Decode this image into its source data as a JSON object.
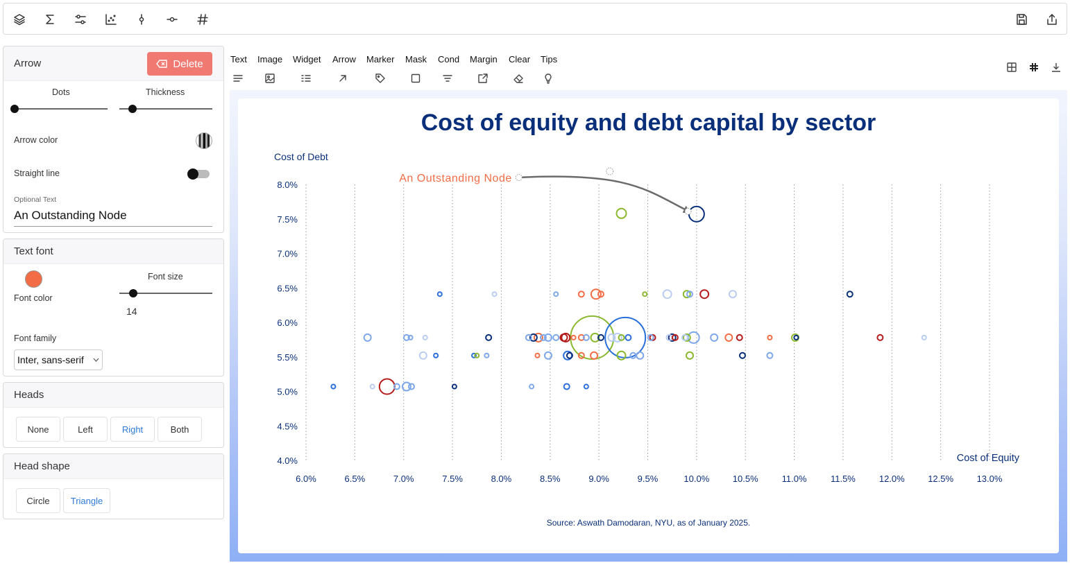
{
  "toolbar": {
    "icons": [
      "layers-icon",
      "sigma-icon",
      "sliders-icon",
      "scatter-icon",
      "marker-vertical-icon",
      "marker-horizontal-icon",
      "hash-icon"
    ],
    "right_icons": [
      "save-icon",
      "share-icon"
    ]
  },
  "arrow_panel": {
    "title": "Arrow",
    "delete_label": "Delete",
    "dots_label": "Dots",
    "thickness_label": "Thickness",
    "dots_value": 0,
    "thickness_value": 0.14,
    "arrow_color_label": "Arrow color",
    "straight_line_label": "Straight line",
    "straight_line_on": false,
    "optional_text_label": "Optional Text",
    "optional_text_value": "An Outstanding Node"
  },
  "text_font_panel": {
    "title": "Text font",
    "font_color_label": "Font color",
    "font_color": "#f26d45",
    "font_size_label": "Font size",
    "font_size_value": "14",
    "font_family_label": "Font family",
    "font_family_value": "Inter, sans-serif"
  },
  "heads_panel": {
    "title": "Heads",
    "options": [
      "None",
      "Left",
      "Right",
      "Both"
    ],
    "selected": "Right"
  },
  "head_shape_panel": {
    "title": "Head shape",
    "options": [
      "Circle",
      "Triangle"
    ],
    "selected": "Triangle"
  },
  "menu": {
    "items": [
      "Text",
      "Image",
      "Widget",
      "Arrow",
      "Marker",
      "Mask",
      "Cond",
      "Margin",
      "Clear",
      "Tips"
    ],
    "icons": [
      "text-lines-icon",
      "image-icon",
      "widget-icon",
      "arrow-icon",
      "tag-icon",
      "square-mask-icon",
      "filter-icon",
      "margin-icon",
      "eraser-icon",
      "bulb-icon"
    ]
  },
  "view_icons": [
    "grid-icon",
    "snap-icon",
    "download-icon"
  ],
  "chart_data": {
    "type": "scatter",
    "title": "Cost of equity and debt capital by sector",
    "xlabel": "Cost of Equity",
    "ylabel": "Cost of Debt",
    "source": "Source: Aswath Damodaran, NYU, as of January 2025.",
    "xlim": [
      6.0,
      13.0
    ],
    "ylim": [
      4.0,
      8.0
    ],
    "x_ticks": [
      "6.0%",
      "6.5%",
      "7.0%",
      "7.5%",
      "8.0%",
      "8.5%",
      "9.0%",
      "9.5%",
      "10.0%",
      "10.5%",
      "11.0%",
      "11.5%",
      "12.0%",
      "12.5%",
      "13.0%"
    ],
    "y_ticks": [
      "4.0%",
      "4.5%",
      "5.0%",
      "5.5%",
      "6.0%",
      "6.5%",
      "7.0%",
      "7.5%",
      "8.0%"
    ],
    "grid": "vertical dotted",
    "colors": {
      "navy": "#0a2f7a",
      "blue": "#2a6fdb",
      "lightblue": "#7da7ea",
      "paleblue": "#b9cdf2",
      "red": "#b51c1c",
      "orange": "#f26d45",
      "green": "#8ab82e"
    },
    "annotation": {
      "text": "An Outstanding Node",
      "color": "#f26d45",
      "from": [
        8.18,
        8.1
      ],
      "to": [
        9.92,
        7.61
      ],
      "target": [
        10.0,
        7.57
      ]
    },
    "points": [
      {
        "x": 10.0,
        "y": 7.57,
        "r": 11,
        "c": "navy"
      },
      {
        "x": 9.23,
        "y": 7.58,
        "r": 7,
        "c": "green"
      },
      {
        "x": 7.37,
        "y": 6.41,
        "r": 3,
        "c": "blue"
      },
      {
        "x": 7.93,
        "y": 6.41,
        "r": 3,
        "c": "paleblue"
      },
      {
        "x": 8.56,
        "y": 6.41,
        "r": 3,
        "c": "lightblue"
      },
      {
        "x": 8.82,
        "y": 6.41,
        "r": 4,
        "c": "orange"
      },
      {
        "x": 8.97,
        "y": 6.41,
        "r": 7,
        "c": "orange"
      },
      {
        "x": 9.02,
        "y": 6.41,
        "r": 4,
        "c": "orange"
      },
      {
        "x": 9.47,
        "y": 6.41,
        "r": 3,
        "c": "green"
      },
      {
        "x": 9.7,
        "y": 6.41,
        "r": 6,
        "c": "paleblue"
      },
      {
        "x": 9.9,
        "y": 6.41,
        "r": 5,
        "c": "green"
      },
      {
        "x": 9.93,
        "y": 6.41,
        "r": 4,
        "c": "lightblue"
      },
      {
        "x": 10.08,
        "y": 6.41,
        "r": 6,
        "c": "red"
      },
      {
        "x": 10.37,
        "y": 6.41,
        "r": 5,
        "c": "paleblue"
      },
      {
        "x": 11.57,
        "y": 6.41,
        "r": 4,
        "c": "navy"
      },
      {
        "x": 6.63,
        "y": 5.78,
        "r": 5,
        "c": "lightblue"
      },
      {
        "x": 7.03,
        "y": 5.78,
        "r": 4,
        "c": "lightblue"
      },
      {
        "x": 7.07,
        "y": 5.78,
        "r": 3,
        "c": "lightblue"
      },
      {
        "x": 7.22,
        "y": 5.78,
        "r": 3,
        "c": "paleblue"
      },
      {
        "x": 7.87,
        "y": 5.78,
        "r": 4,
        "c": "navy"
      },
      {
        "x": 8.28,
        "y": 5.78,
        "r": 4,
        "c": "lightblue"
      },
      {
        "x": 8.33,
        "y": 5.78,
        "r": 5,
        "c": "navy"
      },
      {
        "x": 8.38,
        "y": 5.78,
        "r": 6,
        "c": "orange"
      },
      {
        "x": 8.43,
        "y": 5.78,
        "r": 4,
        "c": "lightblue"
      },
      {
        "x": 8.48,
        "y": 5.78,
        "r": 5,
        "c": "lightblue"
      },
      {
        "x": 8.56,
        "y": 5.78,
        "r": 4,
        "c": "lightblue"
      },
      {
        "x": 8.64,
        "y": 5.78,
        "r": 5,
        "c": "red"
      },
      {
        "x": 8.66,
        "y": 5.78,
        "r": 6,
        "c": "red"
      },
      {
        "x": 8.74,
        "y": 5.78,
        "r": 3,
        "c": "orange"
      },
      {
        "x": 8.82,
        "y": 5.78,
        "r": 4,
        "c": "orange"
      },
      {
        "x": 8.87,
        "y": 5.78,
        "r": 4,
        "c": "lightblue"
      },
      {
        "x": 8.93,
        "y": 5.78,
        "r": 31,
        "c": "green"
      },
      {
        "x": 8.96,
        "y": 5.78,
        "r": 6,
        "c": "green"
      },
      {
        "x": 9.02,
        "y": 5.78,
        "r": 4,
        "c": "navy"
      },
      {
        "x": 9.13,
        "y": 5.78,
        "r": 5,
        "c": "paleblue"
      },
      {
        "x": 9.19,
        "y": 5.78,
        "r": 6,
        "c": "paleblue"
      },
      {
        "x": 9.23,
        "y": 5.78,
        "r": 4,
        "c": "green"
      },
      {
        "x": 9.27,
        "y": 5.78,
        "r": 29,
        "c": "blue"
      },
      {
        "x": 9.3,
        "y": 5.78,
        "r": 4,
        "c": "blue"
      },
      {
        "x": 9.55,
        "y": 5.78,
        "r": 4,
        "c": "red"
      },
      {
        "x": 9.53,
        "y": 5.78,
        "r": 4,
        "c": "lightblue"
      },
      {
        "x": 9.72,
        "y": 5.78,
        "r": 4,
        "c": "paleblue"
      },
      {
        "x": 9.75,
        "y": 5.78,
        "r": 5,
        "c": "navy"
      },
      {
        "x": 9.78,
        "y": 5.78,
        "r": 4,
        "c": "red"
      },
      {
        "x": 9.88,
        "y": 5.78,
        "r": 4,
        "c": "paleblue"
      },
      {
        "x": 9.9,
        "y": 5.78,
        "r": 5,
        "c": "green"
      },
      {
        "x": 9.97,
        "y": 5.78,
        "r": 8,
        "c": "lightblue"
      },
      {
        "x": 10.18,
        "y": 5.78,
        "r": 5,
        "c": "lightblue"
      },
      {
        "x": 10.33,
        "y": 5.78,
        "r": 5,
        "c": "orange"
      },
      {
        "x": 10.44,
        "y": 5.78,
        "r": 4,
        "c": "red"
      },
      {
        "x": 10.75,
        "y": 5.78,
        "r": 3,
        "c": "orange"
      },
      {
        "x": 11.01,
        "y": 5.78,
        "r": 5,
        "c": "green"
      },
      {
        "x": 11.02,
        "y": 5.78,
        "r": 3,
        "c": "navy"
      },
      {
        "x": 11.88,
        "y": 5.78,
        "r": 4,
        "c": "red"
      },
      {
        "x": 12.33,
        "y": 5.78,
        "r": 3,
        "c": "paleblue"
      },
      {
        "x": 7.2,
        "y": 5.52,
        "r": 5,
        "c": "paleblue"
      },
      {
        "x": 7.33,
        "y": 5.52,
        "r": 3,
        "c": "blue"
      },
      {
        "x": 7.72,
        "y": 5.52,
        "r": 3,
        "c": "blue"
      },
      {
        "x": 7.75,
        "y": 5.52,
        "r": 3,
        "c": "green"
      },
      {
        "x": 7.85,
        "y": 5.52,
        "r": 3,
        "c": "lightblue"
      },
      {
        "x": 8.37,
        "y": 5.52,
        "r": 3,
        "c": "orange"
      },
      {
        "x": 8.48,
        "y": 5.52,
        "r": 5,
        "c": "lightblue"
      },
      {
        "x": 8.68,
        "y": 5.52,
        "r": 6,
        "c": "blue"
      },
      {
        "x": 8.7,
        "y": 5.52,
        "r": 4,
        "c": "navy"
      },
      {
        "x": 8.82,
        "y": 5.52,
        "r": 4,
        "c": "orange"
      },
      {
        "x": 8.95,
        "y": 5.52,
        "r": 5,
        "c": "orange"
      },
      {
        "x": 9.23,
        "y": 5.52,
        "r": 6,
        "c": "green"
      },
      {
        "x": 9.35,
        "y": 5.52,
        "r": 4,
        "c": "lightblue"
      },
      {
        "x": 9.42,
        "y": 5.52,
        "r": 5,
        "c": "lightblue"
      },
      {
        "x": 9.93,
        "y": 5.52,
        "r": 5,
        "c": "green"
      },
      {
        "x": 10.47,
        "y": 5.52,
        "r": 4,
        "c": "navy"
      },
      {
        "x": 10.75,
        "y": 5.52,
        "r": 4,
        "c": "lightblue"
      },
      {
        "x": 6.28,
        "y": 5.07,
        "r": 3,
        "c": "blue"
      },
      {
        "x": 6.68,
        "y": 5.07,
        "r": 3,
        "c": "paleblue"
      },
      {
        "x": 6.83,
        "y": 5.07,
        "r": 11,
        "c": "red"
      },
      {
        "x": 6.93,
        "y": 5.07,
        "r": 4,
        "c": "lightblue"
      },
      {
        "x": 7.03,
        "y": 5.07,
        "r": 6,
        "c": "lightblue"
      },
      {
        "x": 7.08,
        "y": 5.07,
        "r": 4,
        "c": "lightblue"
      },
      {
        "x": 7.52,
        "y": 5.07,
        "r": 3,
        "c": "navy"
      },
      {
        "x": 8.31,
        "y": 5.07,
        "r": 3,
        "c": "lightblue"
      },
      {
        "x": 8.67,
        "y": 5.07,
        "r": 4,
        "c": "blue"
      },
      {
        "x": 8.87,
        "y": 5.07,
        "r": 3,
        "c": "blue"
      }
    ]
  }
}
